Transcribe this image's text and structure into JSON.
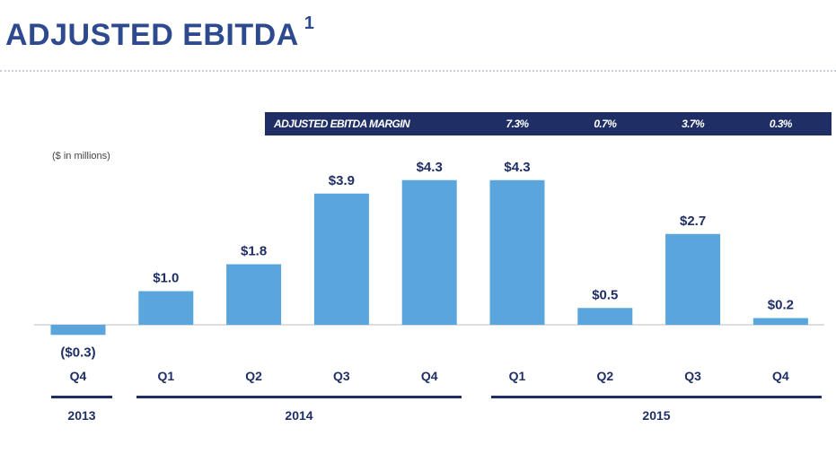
{
  "header": {
    "title": "ADJUSTED EBITDA",
    "footnote": "1"
  },
  "margin_row": {
    "label": "ADJUSTED EBITDA MARGIN",
    "values": [
      "7.3%",
      "0.7%",
      "3.7%",
      "0.3%"
    ]
  },
  "units_note": "($ in millions)",
  "colors": {
    "bar": "#5aa6dc",
    "navy": "#1f2f66",
    "title": "#2e4a8e",
    "label": "#1f2f66"
  },
  "chart_data": {
    "type": "bar",
    "categories": [
      "Q4",
      "Q1",
      "Q2",
      "Q3",
      "Q4",
      "Q1",
      "Q2",
      "Q3",
      "Q4"
    ],
    "values": [
      -0.3,
      1.0,
      1.8,
      3.9,
      4.3,
      4.3,
      0.5,
      2.7,
      0.2
    ],
    "value_labels": [
      "($0.3)",
      "$1.0",
      "$1.8",
      "$3.9",
      "$4.3",
      "$4.3",
      "$0.5",
      "$2.7",
      "$0.2"
    ],
    "groups": [
      {
        "label": "2013",
        "start": 0,
        "end": 0
      },
      {
        "label": "2014",
        "start": 1,
        "end": 4
      },
      {
        "label": "2015",
        "start": 5,
        "end": 8
      }
    ],
    "title": "ADJUSTED EBITDA",
    "ylabel": "($ in millions)",
    "grid": false
  }
}
